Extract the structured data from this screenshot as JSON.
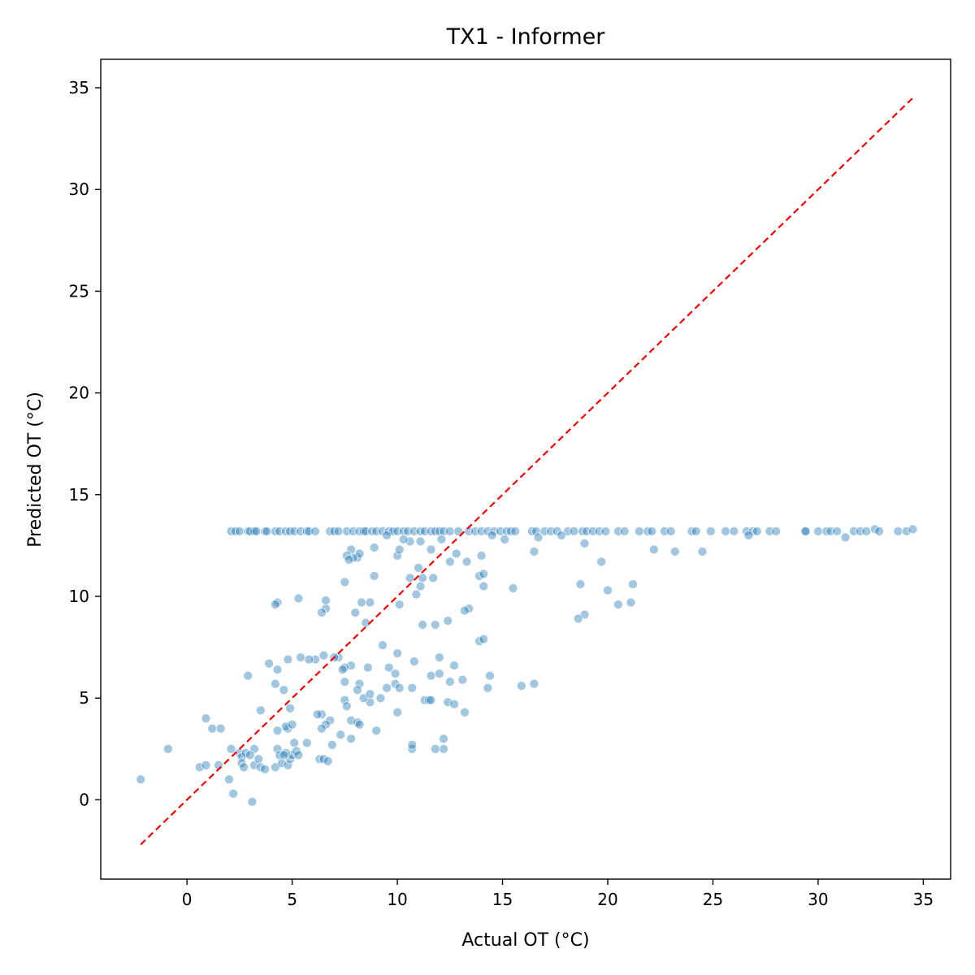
{
  "chart_data": {
    "type": "scatter",
    "title": "TX1 - Informer",
    "xlabel": "Actual OT (°C)",
    "ylabel": "Predicted OT (°C)",
    "xlim": [
      -4.1,
      36.3
    ],
    "ylim": [
      -3.9,
      36.4
    ],
    "xticks": [
      0,
      5,
      10,
      15,
      20,
      25,
      30,
      35
    ],
    "yticks": [
      0,
      5,
      10,
      15,
      20,
      25,
      30,
      35
    ],
    "xtick_labels": [
      "0",
      "5",
      "10",
      "15",
      "20",
      "25",
      "30",
      "35"
    ],
    "ytick_labels": [
      "0",
      "5",
      "10",
      "15",
      "20",
      "25",
      "30",
      "35"
    ],
    "grid": false,
    "point_color": "#1f77b4",
    "reference_line": {
      "from": [
        -2.2,
        -2.2
      ],
      "to": [
        34.5,
        34.5
      ],
      "color": "#ff0000",
      "style": "dashed"
    },
    "points": [
      [
        2.1,
        13.2
      ],
      [
        2.3,
        13.2
      ],
      [
        2.5,
        13.2
      ],
      [
        2.9,
        13.2
      ],
      [
        3.0,
        13.2
      ],
      [
        3.2,
        13.2
      ],
      [
        3.3,
        13.2
      ],
      [
        3.7,
        13.2
      ],
      [
        3.8,
        13.2
      ],
      [
        4.2,
        13.2
      ],
      [
        4.4,
        13.2
      ],
      [
        4.7,
        13.2
      ],
      [
        4.9,
        13.2
      ],
      [
        5.1,
        13.2
      ],
      [
        5.4,
        13.2
      ],
      [
        5.7,
        13.2
      ],
      [
        5.8,
        13.2
      ],
      [
        6.1,
        13.2
      ],
      [
        6.8,
        13.2
      ],
      [
        7.0,
        13.2
      ],
      [
        7.2,
        13.2
      ],
      [
        7.6,
        13.2
      ],
      [
        7.9,
        13.2
      ],
      [
        8.2,
        13.2
      ],
      [
        8.4,
        13.2
      ],
      [
        8.5,
        13.2
      ],
      [
        8.8,
        13.2
      ],
      [
        9.0,
        13.2
      ],
      [
        9.3,
        13.2
      ],
      [
        9.6,
        13.2
      ],
      [
        9.8,
        13.2
      ],
      [
        10.0,
        13.2
      ],
      [
        10.3,
        13.2
      ],
      [
        10.5,
        13.2
      ],
      [
        10.8,
        13.2
      ],
      [
        11.1,
        13.2
      ],
      [
        11.3,
        13.2
      ],
      [
        11.6,
        13.2
      ],
      [
        11.8,
        13.2
      ],
      [
        12.0,
        13.2
      ],
      [
        12.2,
        13.2
      ],
      [
        12.5,
        13.2
      ],
      [
        12.9,
        13.2
      ],
      [
        13.4,
        13.2
      ],
      [
        13.7,
        13.2
      ],
      [
        14.0,
        13.2
      ],
      [
        14.3,
        13.2
      ],
      [
        14.6,
        13.2
      ],
      [
        14.9,
        13.2
      ],
      [
        15.2,
        13.2
      ],
      [
        15.4,
        13.2
      ],
      [
        15.6,
        13.2
      ],
      [
        16.4,
        13.2
      ],
      [
        16.6,
        13.2
      ],
      [
        17.0,
        13.2
      ],
      [
        17.3,
        13.2
      ],
      [
        17.6,
        13.2
      ],
      [
        18.1,
        13.2
      ],
      [
        18.4,
        13.2
      ],
      [
        18.8,
        13.2
      ],
      [
        19.0,
        13.2
      ],
      [
        19.3,
        13.2
      ],
      [
        19.6,
        13.2
      ],
      [
        19.9,
        13.2
      ],
      [
        20.5,
        13.2
      ],
      [
        20.8,
        13.2
      ],
      [
        21.5,
        13.2
      ],
      [
        21.9,
        13.2
      ],
      [
        22.1,
        13.2
      ],
      [
        22.7,
        13.2
      ],
      [
        23.0,
        13.2
      ],
      [
        24.0,
        13.2
      ],
      [
        24.2,
        13.2
      ],
      [
        24.9,
        13.2
      ],
      [
        25.6,
        13.2
      ],
      [
        26.0,
        13.2
      ],
      [
        26.6,
        13.2
      ],
      [
        26.9,
        13.2
      ],
      [
        27.1,
        13.2
      ],
      [
        27.7,
        13.2
      ],
      [
        28.0,
        13.2
      ],
      [
        29.4,
        13.2
      ],
      [
        30.0,
        13.2
      ],
      [
        30.4,
        13.2
      ],
      [
        30.6,
        13.2
      ],
      [
        30.9,
        13.2
      ],
      [
        31.7,
        13.2
      ],
      [
        32.0,
        13.2
      ],
      [
        32.3,
        13.2
      ],
      [
        32.7,
        13.3
      ],
      [
        32.9,
        13.2
      ],
      [
        33.8,
        13.2
      ],
      [
        34.2,
        13.2
      ],
      [
        34.5,
        13.3
      ],
      [
        31.3,
        12.9
      ],
      [
        29.4,
        13.2
      ],
      [
        26.7,
        13.0
      ],
      [
        24.5,
        12.2
      ],
      [
        23.2,
        12.2
      ],
      [
        22.2,
        12.3
      ],
      [
        19.7,
        11.7
      ],
      [
        18.9,
        12.6
      ],
      [
        17.8,
        13.0
      ],
      [
        16.7,
        12.9
      ],
      [
        16.5,
        12.2
      ],
      [
        15.1,
        12.8
      ],
      [
        14.5,
        13.0
      ],
      [
        13.9,
        11.0
      ],
      [
        14.1,
        11.1
      ],
      [
        14.0,
        12.0
      ],
      [
        13.3,
        11.7
      ],
      [
        12.8,
        12.1
      ],
      [
        12.5,
        11.7
      ],
      [
        12.1,
        12.8
      ],
      [
        11.6,
        12.3
      ],
      [
        11.1,
        12.7
      ],
      [
        10.6,
        12.7
      ],
      [
        10.3,
        12.8
      ],
      [
        10.0,
        12.0
      ],
      [
        10.1,
        12.3
      ],
      [
        9.5,
        13.0
      ],
      [
        8.9,
        12.4
      ],
      [
        8.1,
        11.9
      ],
      [
        8.2,
        12.1
      ],
      [
        7.9,
        11.9
      ],
      [
        7.8,
        12.3
      ],
      [
        7.6,
        12.0
      ],
      [
        7.7,
        11.8
      ],
      [
        11.0,
        11.4
      ],
      [
        11.7,
        10.9
      ],
      [
        11.2,
        10.9
      ],
      [
        10.9,
        10.1
      ],
      [
        11.1,
        10.5
      ],
      [
        10.6,
        10.9
      ],
      [
        8.9,
        11.0
      ],
      [
        7.5,
        10.7
      ],
      [
        14.1,
        10.5
      ],
      [
        15.5,
        10.4
      ],
      [
        18.7,
        10.6
      ],
      [
        20.0,
        10.3
      ],
      [
        21.2,
        10.6
      ],
      [
        20.5,
        9.6
      ],
      [
        21.1,
        9.7
      ],
      [
        18.9,
        9.1
      ],
      [
        18.6,
        8.9
      ],
      [
        13.4,
        9.4
      ],
      [
        13.2,
        9.3
      ],
      [
        12.4,
        8.8
      ],
      [
        11.8,
        8.6
      ],
      [
        11.2,
        8.6
      ],
      [
        10.1,
        9.6
      ],
      [
        8.7,
        9.7
      ],
      [
        8.3,
        9.7
      ],
      [
        8.0,
        9.2
      ],
      [
        8.5,
        8.7
      ],
      [
        6.6,
        9.4
      ],
      [
        6.4,
        9.2
      ],
      [
        6.6,
        9.8
      ],
      [
        5.3,
        9.9
      ],
      [
        4.3,
        9.7
      ],
      [
        4.2,
        9.6
      ],
      [
        13.9,
        7.8
      ],
      [
        14.1,
        7.9
      ],
      [
        12.0,
        7.0
      ],
      [
        12.7,
        6.6
      ],
      [
        12.0,
        6.2
      ],
      [
        11.6,
        6.1
      ],
      [
        10.8,
        6.8
      ],
      [
        10.7,
        5.5
      ],
      [
        10.0,
        7.2
      ],
      [
        9.9,
        6.2
      ],
      [
        9.6,
        6.5
      ],
      [
        9.3,
        7.6
      ],
      [
        9.9,
        5.7
      ],
      [
        10.1,
        5.5
      ],
      [
        9.5,
        5.5
      ],
      [
        8.6,
        6.5
      ],
      [
        8.7,
        4.8
      ],
      [
        8.4,
        5.0
      ],
      [
        8.2,
        5.7
      ],
      [
        7.8,
        6.6
      ],
      [
        7.5,
        6.5
      ],
      [
        7.5,
        5.8
      ],
      [
        7.4,
        6.4
      ],
      [
        7.2,
        7.0
      ],
      [
        7.0,
        7.0
      ],
      [
        6.5,
        7.1
      ],
      [
        6.1,
        6.9
      ],
      [
        5.8,
        6.9
      ],
      [
        5.4,
        7.0
      ],
      [
        4.8,
        6.9
      ],
      [
        4.6,
        5.4
      ],
      [
        4.2,
        5.7
      ],
      [
        4.3,
        6.4
      ],
      [
        3.9,
        6.7
      ],
      [
        2.9,
        6.1
      ],
      [
        14.4,
        6.1
      ],
      [
        14.3,
        5.5
      ],
      [
        15.9,
        5.6
      ],
      [
        16.5,
        5.7
      ],
      [
        13.1,
        5.9
      ],
      [
        12.5,
        5.8
      ],
      [
        12.4,
        4.8
      ],
      [
        12.7,
        4.7
      ],
      [
        13.2,
        4.3
      ],
      [
        11.3,
        4.9
      ],
      [
        11.5,
        4.9
      ],
      [
        11.6,
        4.9
      ],
      [
        10.0,
        4.3
      ],
      [
        9.2,
        5.0
      ],
      [
        8.7,
        5.2
      ],
      [
        8.1,
        5.4
      ],
      [
        7.5,
        4.9
      ],
      [
        7.6,
        4.6
      ],
      [
        6.4,
        4.2
      ],
      [
        6.2,
        4.2
      ],
      [
        7.8,
        3.9
      ],
      [
        8.1,
        3.8
      ],
      [
        8.2,
        3.7
      ],
      [
        6.8,
        3.9
      ],
      [
        6.6,
        3.7
      ],
      [
        4.9,
        4.5
      ],
      [
        4.8,
        3.5
      ],
      [
        4.7,
        3.6
      ],
      [
        3.5,
        4.4
      ],
      [
        4.3,
        3.4
      ],
      [
        5.0,
        3.7
      ],
      [
        6.4,
        3.5
      ],
      [
        7.3,
        3.2
      ],
      [
        7.8,
        3.0
      ],
      [
        9.0,
        3.4
      ],
      [
        12.2,
        3.0
      ],
      [
        12.2,
        2.5
      ],
      [
        11.8,
        2.5
      ],
      [
        10.7,
        2.5
      ],
      [
        10.7,
        2.7
      ],
      [
        6.9,
        2.7
      ],
      [
        5.7,
        2.8
      ],
      [
        5.1,
        2.8
      ],
      [
        4.3,
        2.5
      ],
      [
        3.2,
        2.5
      ],
      [
        2.1,
        2.5
      ],
      [
        1.6,
        3.5
      ],
      [
        1.2,
        3.5
      ],
      [
        0.9,
        4.0
      ],
      [
        -0.9,
        2.5
      ],
      [
        -2.2,
        1.0
      ],
      [
        0.6,
        1.6
      ],
      [
        0.9,
        1.7
      ],
      [
        1.5,
        1.7
      ],
      [
        2.0,
        1.0
      ],
      [
        2.2,
        0.3
      ],
      [
        3.1,
        -0.1
      ],
      [
        2.5,
        2.3
      ],
      [
        2.6,
        2.1
      ],
      [
        2.6,
        1.8
      ],
      [
        2.7,
        1.6
      ],
      [
        2.8,
        2.3
      ],
      [
        3.0,
        2.2
      ],
      [
        3.2,
        1.7
      ],
      [
        3.4,
        2.0
      ],
      [
        3.5,
        1.6
      ],
      [
        3.7,
        1.5
      ],
      [
        4.2,
        1.6
      ],
      [
        4.4,
        2.2
      ],
      [
        4.5,
        1.8
      ],
      [
        4.8,
        1.7
      ],
      [
        4.9,
        2.0
      ],
      [
        5.0,
        2.2
      ],
      [
        5.2,
        2.4
      ],
      [
        5.3,
        2.2
      ],
      [
        6.3,
        2.0
      ],
      [
        6.5,
        2.0
      ],
      [
        6.7,
        1.9
      ],
      [
        4.7,
        2.3
      ],
      [
        4.6,
        2.2
      ]
    ]
  }
}
